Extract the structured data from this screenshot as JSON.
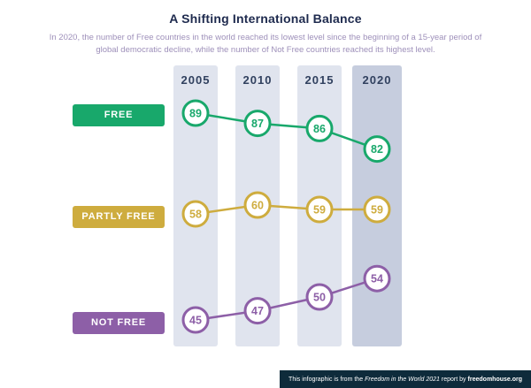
{
  "chart_data": {
    "type": "line",
    "title": "A Shifting International Balance",
    "subtitle": "In 2020, the number of Free countries in the world reached its lowest level since the beginning of a 15-year period of global democratic decline, while the number of Not Free countries reached its highest level.",
    "x": [
      "2005",
      "2010",
      "2015",
      "2020"
    ],
    "series": [
      {
        "name": "FREE",
        "color": "#18a86b",
        "values": [
          89,
          87,
          86,
          82
        ]
      },
      {
        "name": "PARTLY FREE",
        "color": "#ceac3e",
        "values": [
          58,
          60,
          59,
          59
        ]
      },
      {
        "name": "NOT FREE",
        "color": "#8d5fa7",
        "values": [
          45,
          47,
          50,
          54
        ]
      }
    ],
    "highlight_column": "2020",
    "column_colors": {
      "normal": "#e0e4ee",
      "highlight": "#c6cdde"
    },
    "legend_position": "left",
    "grid": false,
    "ylim": [
      40,
      95
    ]
  },
  "footer": {
    "prefix": "This infographic is from the",
    "report_title": "Freedom in the World 2021",
    "middle": "report by",
    "link": "freedomhouse.org"
  }
}
